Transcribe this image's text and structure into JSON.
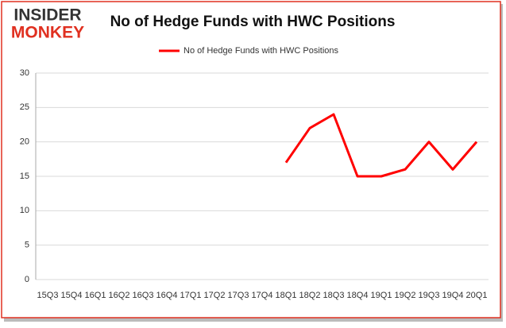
{
  "logo": {
    "top": "INSIDER",
    "bottom": "MONKEY"
  },
  "chart_data": {
    "type": "line",
    "title": "No of Hedge Funds with HWC Positions",
    "categories": [
      "15Q3",
      "15Q4",
      "16Q1",
      "16Q2",
      "16Q3",
      "16Q4",
      "17Q1",
      "17Q2",
      "17Q3",
      "17Q4",
      "18Q1",
      "18Q2",
      "18Q3",
      "18Q4",
      "19Q1",
      "19Q2",
      "19Q3",
      "19Q4",
      "20Q1"
    ],
    "series": [
      {
        "name": "No of Hedge Funds with HWC Positions",
        "color": "#ff0000",
        "values": [
          null,
          null,
          null,
          null,
          null,
          null,
          null,
          null,
          null,
          null,
          17,
          22,
          24,
          15,
          15,
          16,
          20,
          16,
          20
        ]
      }
    ],
    "ylim": [
      0,
      30
    ],
    "yticks": [
      0,
      5,
      10,
      15,
      20,
      25,
      30
    ],
    "grid": true,
    "legend": "top"
  }
}
